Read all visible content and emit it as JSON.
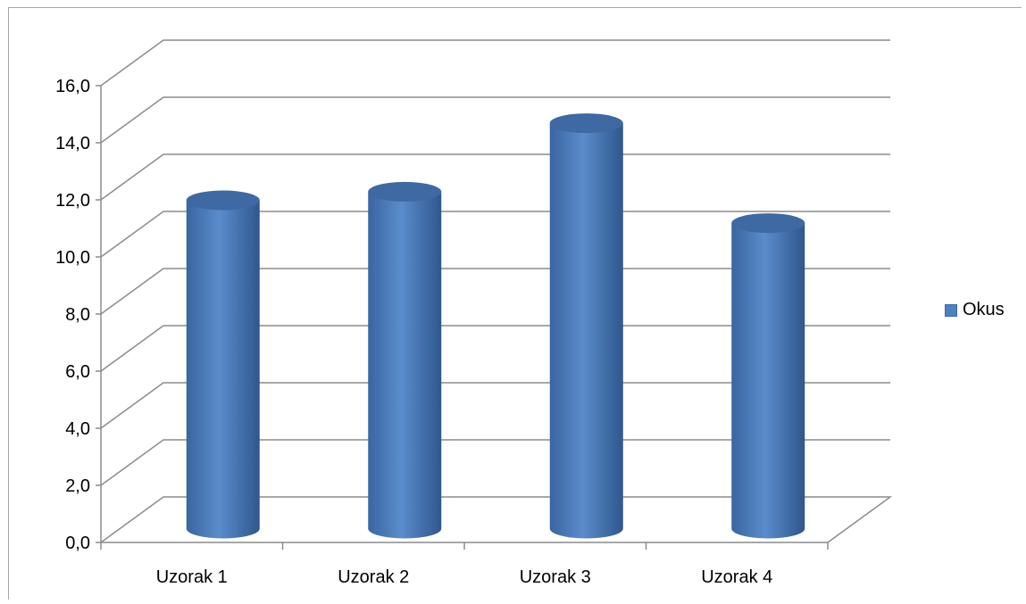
{
  "chart_data": {
    "type": "bar",
    "style": "3d-cylinder",
    "categories": [
      "Uzorak 1",
      "Uzorak 2",
      "Uzorak 3",
      "Uzorak 4"
    ],
    "series": [
      {
        "name": "Okus",
        "values": [
          11.5,
          11.8,
          14.2,
          10.7
        ],
        "color": "#4f81bd"
      }
    ],
    "ylim": [
      0,
      16
    ],
    "ytick_step": 2,
    "ytick_labels": [
      "0,0",
      "2,0",
      "4,0",
      "6,0",
      "8,0",
      "10,0",
      "12,0",
      "14,0",
      "16,0"
    ],
    "grid": true,
    "legend_position": "right",
    "title": "",
    "xlabel": "",
    "ylabel": ""
  }
}
